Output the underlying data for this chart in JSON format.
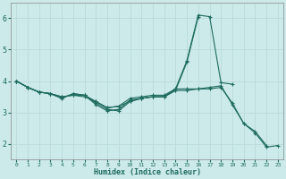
{
  "xlabel": "Humidex (Indice chaleur)",
  "bg_color": "#cceaea",
  "grid_color": "#bbdada",
  "line_color": "#1e6b5e",
  "xlim": [
    -0.5,
    23.5
  ],
  "ylim": [
    1.5,
    6.5
  ],
  "yticks": [
    2,
    3,
    4,
    5,
    6
  ],
  "xticks": [
    0,
    1,
    2,
    3,
    4,
    5,
    6,
    7,
    8,
    9,
    10,
    11,
    12,
    13,
    14,
    15,
    16,
    17,
    18,
    19,
    20,
    21,
    22,
    23
  ],
  "series": [
    [
      4.0,
      3.8,
      3.65,
      3.6,
      3.45,
      3.6,
      3.55,
      3.25,
      3.05,
      3.1,
      3.4,
      3.45,
      3.5,
      3.5,
      3.75,
      4.65,
      6.1,
      6.05,
      3.95,
      3.9,
      null,
      null,
      null,
      null
    ],
    [
      4.0,
      3.8,
      3.65,
      3.6,
      3.45,
      3.6,
      3.55,
      3.3,
      3.1,
      3.05,
      3.35,
      3.45,
      3.5,
      3.5,
      3.7,
      4.6,
      6.05,
      null,
      null,
      null,
      null,
      null,
      null,
      null
    ],
    [
      4.0,
      3.8,
      3.65,
      3.6,
      3.5,
      3.55,
      3.55,
      3.35,
      3.15,
      3.2,
      3.45,
      3.5,
      3.55,
      3.55,
      3.75,
      3.75,
      3.75,
      3.8,
      3.85,
      3.25,
      2.65,
      2.4,
      1.95,
      null
    ],
    [
      4.0,
      3.8,
      3.65,
      3.6,
      3.5,
      3.55,
      3.5,
      3.35,
      3.15,
      3.2,
      3.35,
      3.45,
      3.5,
      3.5,
      3.7,
      3.7,
      3.75,
      3.75,
      3.8,
      3.3,
      2.65,
      2.35,
      1.9,
      1.95
    ]
  ]
}
